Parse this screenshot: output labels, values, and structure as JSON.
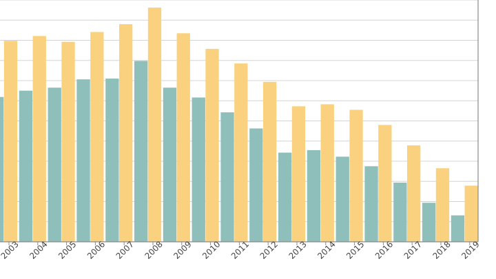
{
  "chart_data": {
    "type": "bar",
    "categories": [
      "2003",
      "2004",
      "2005",
      "2006",
      "2007",
      "2008",
      "2009",
      "2010",
      "2011",
      "2012",
      "2013",
      "2014",
      "2015",
      "2016",
      "2017",
      "2018",
      "2019"
    ],
    "series": [
      {
        "values": [
          5.75,
          6.0,
          6.12,
          6.45,
          6.48,
          7.18,
          6.12,
          5.73,
          5.14,
          4.5,
          3.54,
          3.64,
          3.38,
          3.0,
          2.35,
          1.55,
          1.05
        ],
        "color": "#8fbfba"
      },
      {
        "values": [
          7.98,
          8.17,
          7.94,
          8.33,
          8.64,
          9.3,
          8.28,
          7.66,
          7.08,
          6.35,
          5.38,
          5.46,
          5.24,
          4.64,
          3.83,
          2.92,
          2.23
        ],
        "color": "#fad27f"
      }
    ],
    "ylim": [
      0,
      9.6
    ],
    "grid": true,
    "colors": {
      "grid": "#d4d4d4",
      "axis": "#8a8a8a",
      "tick_label": "#444444"
    }
  }
}
